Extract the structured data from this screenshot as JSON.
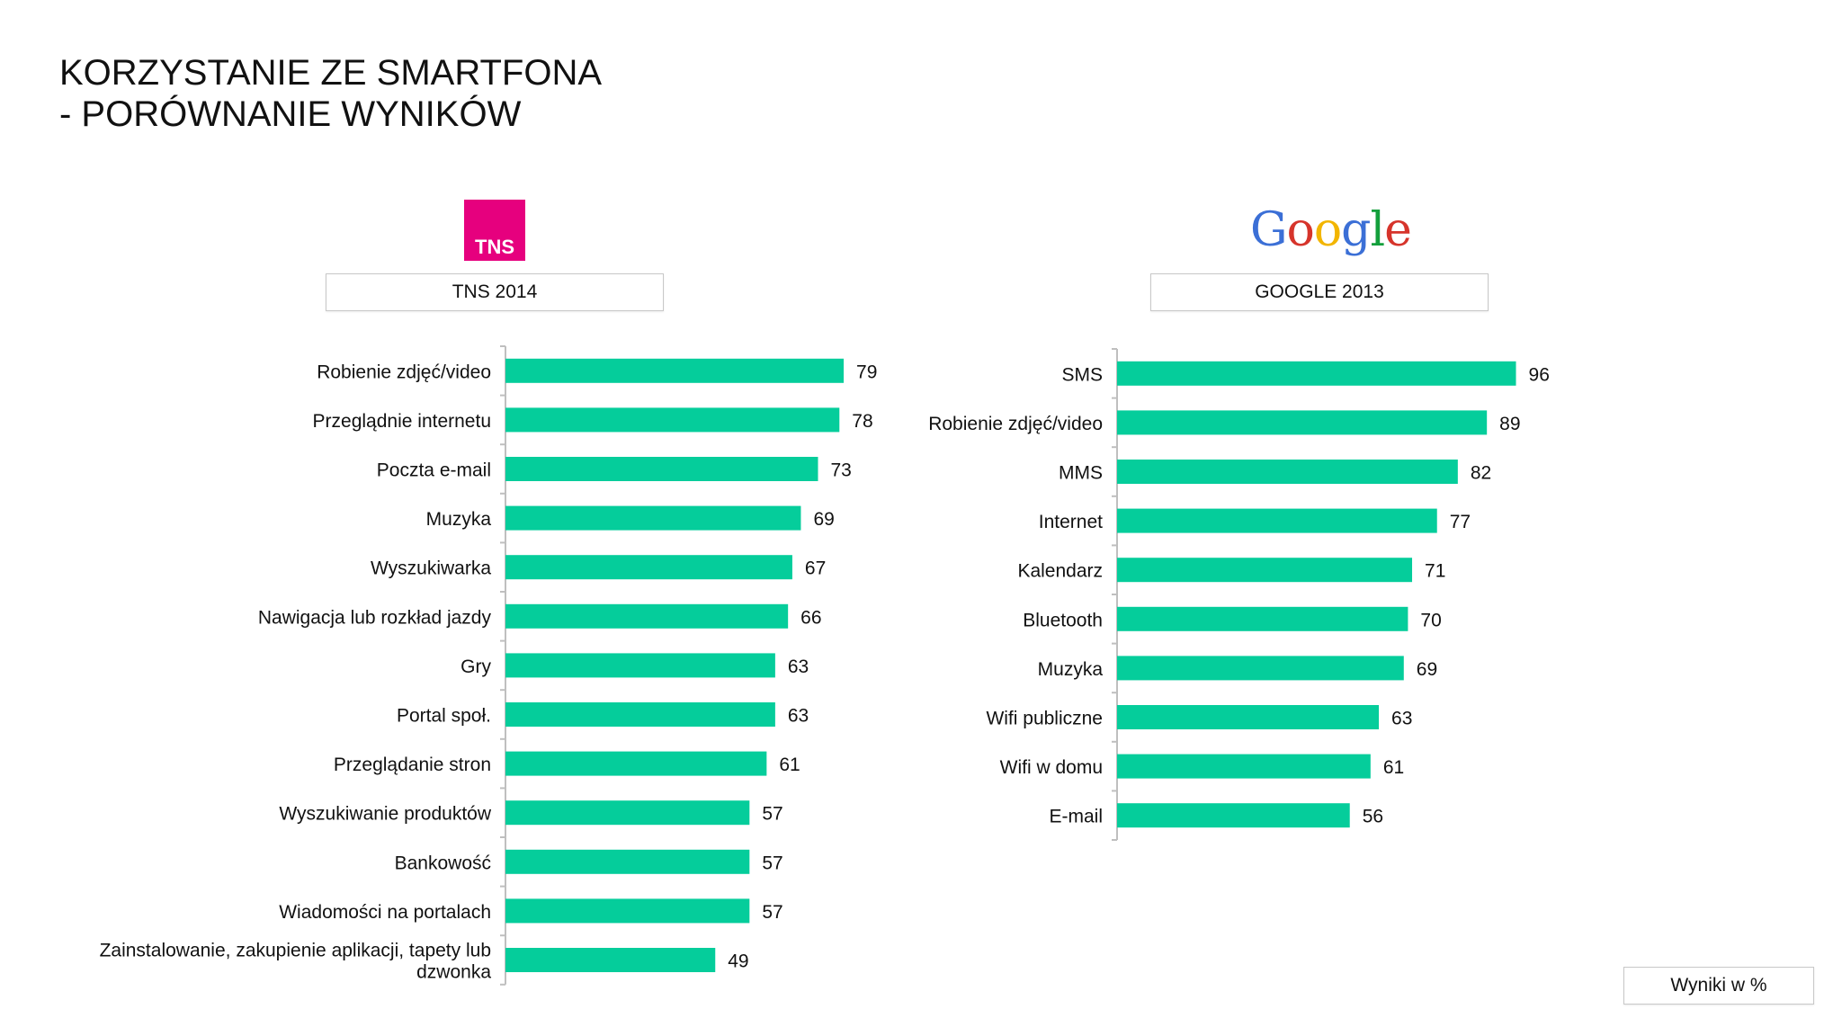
{
  "page": {
    "title_line1": "KORZYSTANIE ZE SMARTFONA",
    "title_line2": "- PORÓWNANIE WYNIKÓW",
    "tns_logo_text": "TNS",
    "google_logo_text": "Google",
    "unit_note": "Wyniki w %"
  },
  "colors": {
    "bar": "#05cd9b",
    "axis": "#bfbfbf",
    "tns_brand": "#e6007e",
    "google_letters": [
      "#3b6fd6",
      "#d6342b",
      "#f2b500",
      "#3b6fd6",
      "#139f3c",
      "#d6342b"
    ]
  },
  "chart_data": [
    {
      "type": "bar",
      "orientation": "horizontal",
      "title": "TNS 2014",
      "xlim": [
        0,
        100
      ],
      "categories": [
        "Robienie zdjęć/video",
        "Przeglądnie internetu",
        "Poczta e-mail",
        "Muzyka",
        "Wyszukiwarka",
        "Nawigacja lub rozkład jazdy",
        "Gry",
        "Portal społ.",
        "Przeglądanie stron",
        "Wyszukiwanie produktów",
        "Bankowość",
        "Wiadomości na portalach",
        "Zainstalowanie, zakupienie aplikacji, tapety lub dzwonka"
      ],
      "values": [
        79,
        78,
        73,
        69,
        67,
        66,
        63,
        63,
        61,
        57,
        57,
        57,
        49
      ],
      "grid": false,
      "legend": "none"
    },
    {
      "type": "bar",
      "orientation": "horizontal",
      "title": "GOOGLE 2013",
      "xlim": [
        0,
        100
      ],
      "categories": [
        "SMS",
        "Robienie zdjęć/video",
        "MMS",
        "Internet",
        "Kalendarz",
        "Bluetooth",
        "Muzyka",
        "Wifi publiczne",
        "Wifi w domu",
        "E-mail"
      ],
      "values": [
        96,
        89,
        82,
        77,
        71,
        70,
        69,
        63,
        61,
        56
      ],
      "grid": false,
      "legend": "none"
    }
  ]
}
